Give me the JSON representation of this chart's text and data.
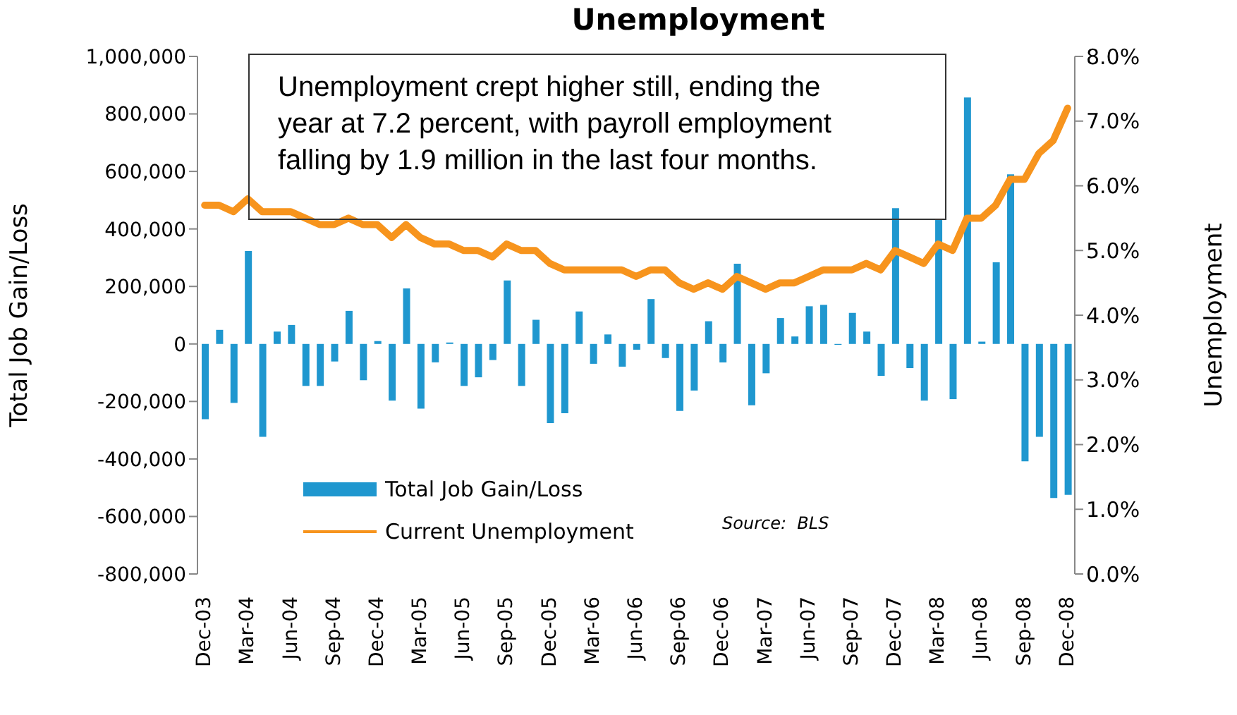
{
  "chart_data": {
    "type": "bar",
    "title": "Unemployment",
    "ylabel": "Total Job Gain/Loss",
    "y2label": "Unemployment",
    "annotations": [
      "Unemployment crept higher still, ending the year at 7.2 percent, with payroll employment falling by 1.9 million in the last four months.",
      "Source:  BLS"
    ],
    "categories": [
      "Dec-03",
      null,
      null,
      "Mar-04",
      null,
      null,
      "Jun-04",
      null,
      null,
      "Sep-04",
      null,
      null,
      "Dec-04",
      null,
      null,
      "Mar-05",
      null,
      null,
      "Jun-05",
      null,
      null,
      "Sep-05",
      null,
      null,
      "Dec-05",
      null,
      null,
      "Mar-06",
      null,
      null,
      "Jun-06",
      null,
      null,
      "Sep-06",
      null,
      null,
      "Dec-06",
      null,
      null,
      "Mar-07",
      null,
      null,
      "Jun-07",
      null,
      null,
      "Sep-07",
      null,
      null,
      "Dec-07",
      null,
      null,
      "Mar-08",
      null,
      null,
      "Jun-08",
      null,
      null,
      "Sep-08",
      null,
      null,
      "Dec-08"
    ],
    "series": [
      {
        "name": "Total Job Gain/Loss",
        "type": "bar",
        "color": "#1f97cf",
        "values": [
          -262000,
          49000,
          -205000,
          323000,
          -323000,
          43000,
          66000,
          -146000,
          -146000,
          -61000,
          115000,
          -126000,
          10000,
          -197000,
          193000,
          -225000,
          -64000,
          5000,
          -146000,
          -116000,
          -56000,
          221000,
          -146000,
          84000,
          -275000,
          -241000,
          113000,
          -69000,
          33000,
          -79000,
          -20000,
          156000,
          -49000,
          -233000,
          -162000,
          79000,
          -64000,
          279000,
          -213000,
          -102000,
          90000,
          26000,
          131000,
          136000,
          -3000,
          108000,
          43000,
          -111000,
          472000,
          -84000,
          -197000,
          434000,
          -192000,
          857000,
          8000,
          284000,
          590000,
          -408000,
          -323000,
          -536000,
          -525000
        ]
      },
      {
        "name": "Current Unemployment",
        "type": "line",
        "axis": "y2",
        "color": "#f7941d",
        "values": [
          5.7,
          5.7,
          5.6,
          5.8,
          5.6,
          5.6,
          5.6,
          5.5,
          5.4,
          5.4,
          5.5,
          5.4,
          5.4,
          5.2,
          5.4,
          5.2,
          5.1,
          5.1,
          5.0,
          5.0,
          4.9,
          5.1,
          5.0,
          5.0,
          4.8,
          4.7,
          4.7,
          4.7,
          4.7,
          4.7,
          4.6,
          4.7,
          4.7,
          4.5,
          4.4,
          4.5,
          4.4,
          4.6,
          4.5,
          4.4,
          4.5,
          4.5,
          4.6,
          4.7,
          4.7,
          4.7,
          4.8,
          4.7,
          5.0,
          4.9,
          4.8,
          5.1,
          5.0,
          5.5,
          5.5,
          5.7,
          6.1,
          6.1,
          6.5,
          6.7,
          7.2
        ]
      }
    ],
    "ylim": [
      -800000,
      1000000
    ],
    "yticks": [
      {
        "value": -800000,
        "label": "-800,000"
      },
      {
        "value": -600000,
        "label": "-600,000"
      },
      {
        "value": -400000,
        "label": "-400,000"
      },
      {
        "value": -200000,
        "label": "-200,000"
      },
      {
        "value": 0,
        "label": "0"
      },
      {
        "value": 200000,
        "label": "200,000"
      },
      {
        "value": 400000,
        "label": "400,000"
      },
      {
        "value": 600000,
        "label": "600,000"
      },
      {
        "value": 800000,
        "label": "800,000"
      },
      {
        "value": 1000000,
        "label": "1,000,000"
      }
    ],
    "y2lim": [
      0,
      8
    ],
    "y2ticks": [
      {
        "value": 0,
        "label": "0.0%"
      },
      {
        "value": 1,
        "label": "1.0%"
      },
      {
        "value": 2,
        "label": "2.0%"
      },
      {
        "value": 3,
        "label": "3.0%"
      },
      {
        "value": 4,
        "label": "4.0%"
      },
      {
        "value": 5,
        "label": "5.0%"
      },
      {
        "value": 6,
        "label": "6.0%"
      },
      {
        "value": 7,
        "label": "7.0%"
      },
      {
        "value": 8,
        "label": "8.0%"
      }
    ],
    "grid": false,
    "legend": "bottom left",
    "marker": "none",
    "line_style": "solid"
  }
}
